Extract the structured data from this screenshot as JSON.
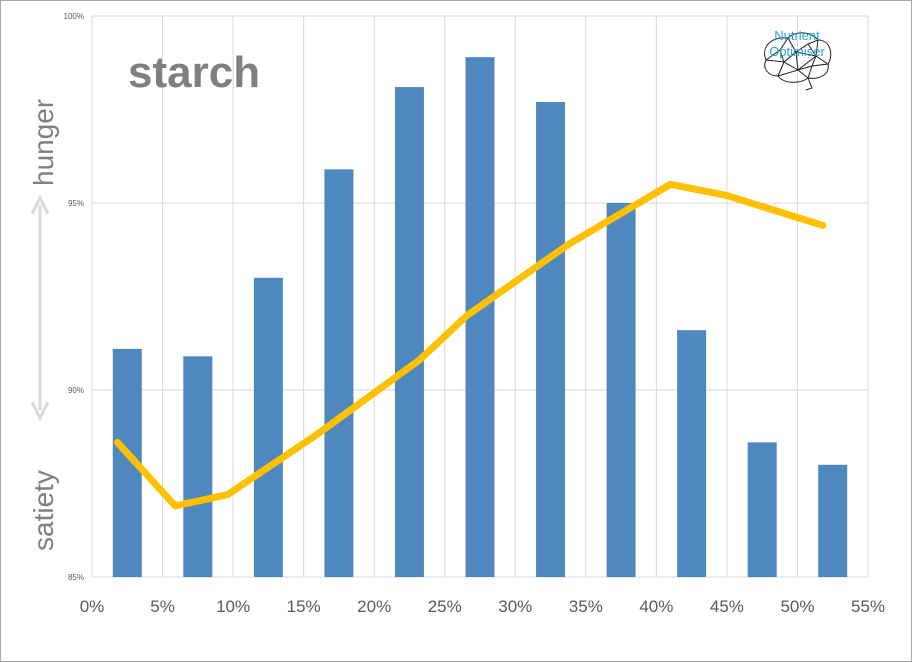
{
  "colors": {
    "bar": "#4f87bf",
    "line": "#ffc000",
    "grid": "#d9d9d9",
    "axis_text": "#595959",
    "brand": "#2aa3d9",
    "label_gray": "#7f7f7f"
  },
  "chart_data": {
    "type": "bar",
    "title": "starch",
    "xlabel": "",
    "ylabel": "",
    "side_labels": {
      "top": "hunger",
      "bottom": "satiety"
    },
    "x_ticks": [
      "0%",
      "5%",
      "10%",
      "15%",
      "20%",
      "25%",
      "30%",
      "35%",
      "40%",
      "45%",
      "50%",
      "55%"
    ],
    "y_ticks": [
      "85%",
      "90%",
      "95%",
      "100%"
    ],
    "ylim": [
      85,
      100
    ],
    "xlim": [
      0,
      55
    ],
    "grid": true,
    "series": [
      {
        "type": "bar",
        "x": [
          2.5,
          7.5,
          12.5,
          17.5,
          22.5,
          27.5,
          32.5,
          37.5,
          42.5,
          47.5,
          52.5
        ],
        "values": [
          91.1,
          90.9,
          93.0,
          95.9,
          98.1,
          98.9,
          97.7,
          95.0,
          91.6,
          88.6,
          88.0
        ]
      },
      {
        "type": "line",
        "x": [
          1.8,
          5.9,
          9.6,
          15.9,
          23.2,
          26.6,
          33.8,
          41.0,
          45.0,
          51.8
        ],
        "values": [
          88.6,
          86.9,
          87.2,
          88.8,
          90.8,
          92.0,
          93.9,
          95.5,
          95.2,
          94.4
        ]
      }
    ]
  },
  "brand": {
    "line1": "Nutrient",
    "line2": "Optimiser"
  }
}
